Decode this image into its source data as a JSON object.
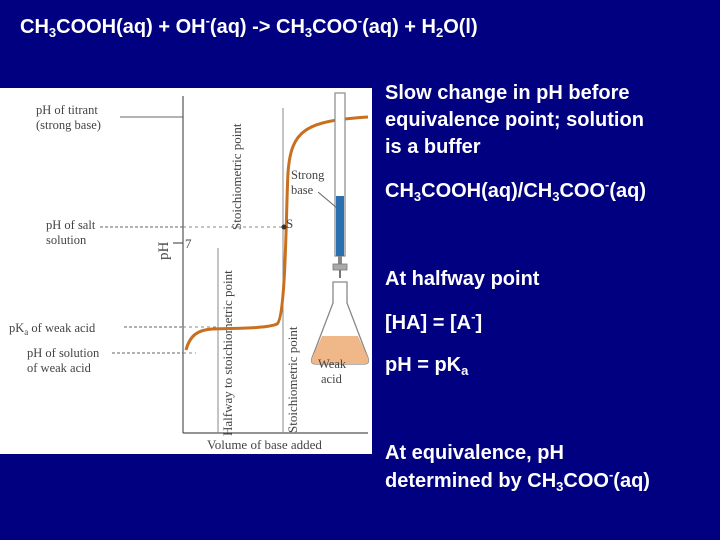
{
  "title": {
    "p1": "CH",
    "s1": "3",
    "p2": "COOH(aq) + OH",
    "s2": "-",
    "p3": "(aq) -> CH",
    "s3": "3",
    "p4": "COO",
    "s4": "-",
    "p5": "(aq) + H",
    "s5": "2",
    "p6": "O(l)"
  },
  "figure": {
    "y_axis_label": "pH",
    "y_tick_7": "7",
    "x_axis_label": "Volume of base added",
    "left_labels": {
      "titrant_line1": "pH of titrant",
      "titrant_line2": "(strong base)",
      "salt_line1": "pH of salt",
      "salt_line2": "solution",
      "pka_prefix": "pK",
      "pka_sub": "a",
      "pka_suffix": " of weak acid",
      "weak_line1": "pH of solution",
      "weak_line2": "of weak acid"
    },
    "vertical_labels": {
      "stoich": "Stoichiometric point",
      "halfway": "Halfway to stoichiometric point",
      "stoich2": "Stoichiometric point"
    },
    "point_s": "S",
    "strong_base_line1": "Strong",
    "strong_base_line2": "base",
    "weak_acid_line1": "Weak",
    "weak_acid_line2": "acid",
    "curve_color": "#c87020"
  },
  "bullets": {
    "b1_line1": "Slow change in pH before",
    "b1_line2": "equivalence point; solution",
    "b1_line3": "is a buffer",
    "b2": {
      "p1": "CH",
      "s1": "3",
      "p2": "COOH(aq)/CH",
      "s2": "3",
      "p3": "COO",
      "s3": "-",
      "p4": "(aq)"
    },
    "b3": "At halfway point",
    "b4": {
      "p1": "[HA] = [A",
      "s1": "-",
      "p2": "]"
    },
    "b5": {
      "p1": "p",
      "p2": "H = pK",
      "s1": "a"
    },
    "b6_line1": "At equivalence, pH",
    "b6_line2": {
      "p1": "determined by CH",
      "s1": "3",
      "p2": "COO",
      "s2": "-",
      "p3": "(aq)"
    }
  }
}
